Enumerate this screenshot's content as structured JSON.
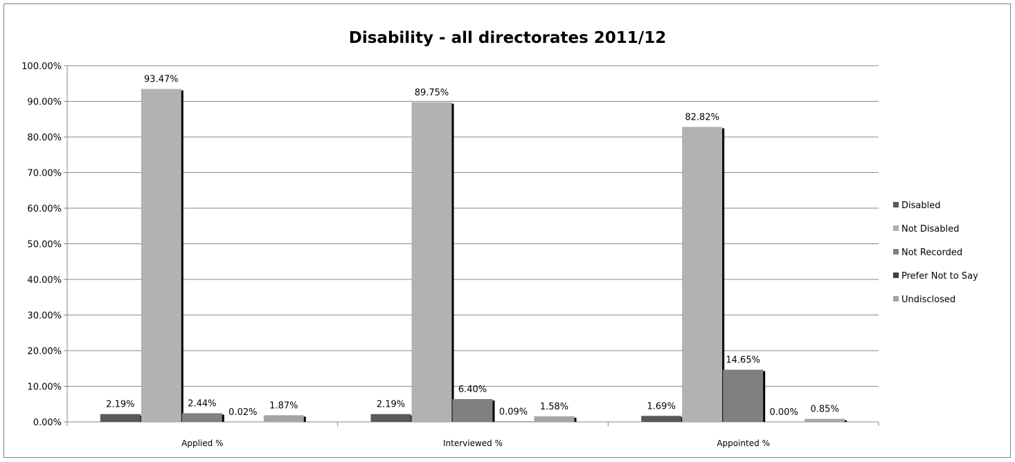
{
  "chart_data": {
    "type": "bar",
    "title": "Disability - all directorates 2011/12",
    "xlabel": "",
    "ylabel": "",
    "ylim": [
      0,
      100
    ],
    "y_ticks": [
      "0.00%",
      "10.00%",
      "20.00%",
      "30.00%",
      "40.00%",
      "50.00%",
      "60.00%",
      "70.00%",
      "80.00%",
      "90.00%",
      "100.00%"
    ],
    "categories": [
      "Applied %",
      "Interviewed %",
      "Appointed %"
    ],
    "grid": true,
    "legend_position": "right",
    "series": [
      {
        "name": "Disabled",
        "color": "#595959",
        "values": [
          2.19,
          2.19,
          1.69
        ],
        "labels": [
          "2.19%",
          "2.19%",
          "1.69%"
        ]
      },
      {
        "name": "Not Disabled",
        "color": "#b2b2b2",
        "values": [
          93.47,
          89.75,
          82.82
        ],
        "labels": [
          "93.47%",
          "89.75%",
          "82.82%"
        ]
      },
      {
        "name": "Not Recorded",
        "color": "#808080",
        "values": [
          2.44,
          6.4,
          14.65
        ],
        "labels": [
          "2.44%",
          "6.40%",
          "14.65%"
        ]
      },
      {
        "name": "Prefer Not to Say",
        "color": "#404040",
        "values": [
          0.02,
          0.09,
          0.0
        ],
        "labels": [
          "0.02%",
          "0.09%",
          "0.00%"
        ]
      },
      {
        "name": "Undisclosed",
        "color": "#a6a6a6",
        "values": [
          1.87,
          1.58,
          0.85
        ],
        "labels": [
          "1.87%",
          "1.58%",
          "0.85%"
        ]
      }
    ]
  }
}
